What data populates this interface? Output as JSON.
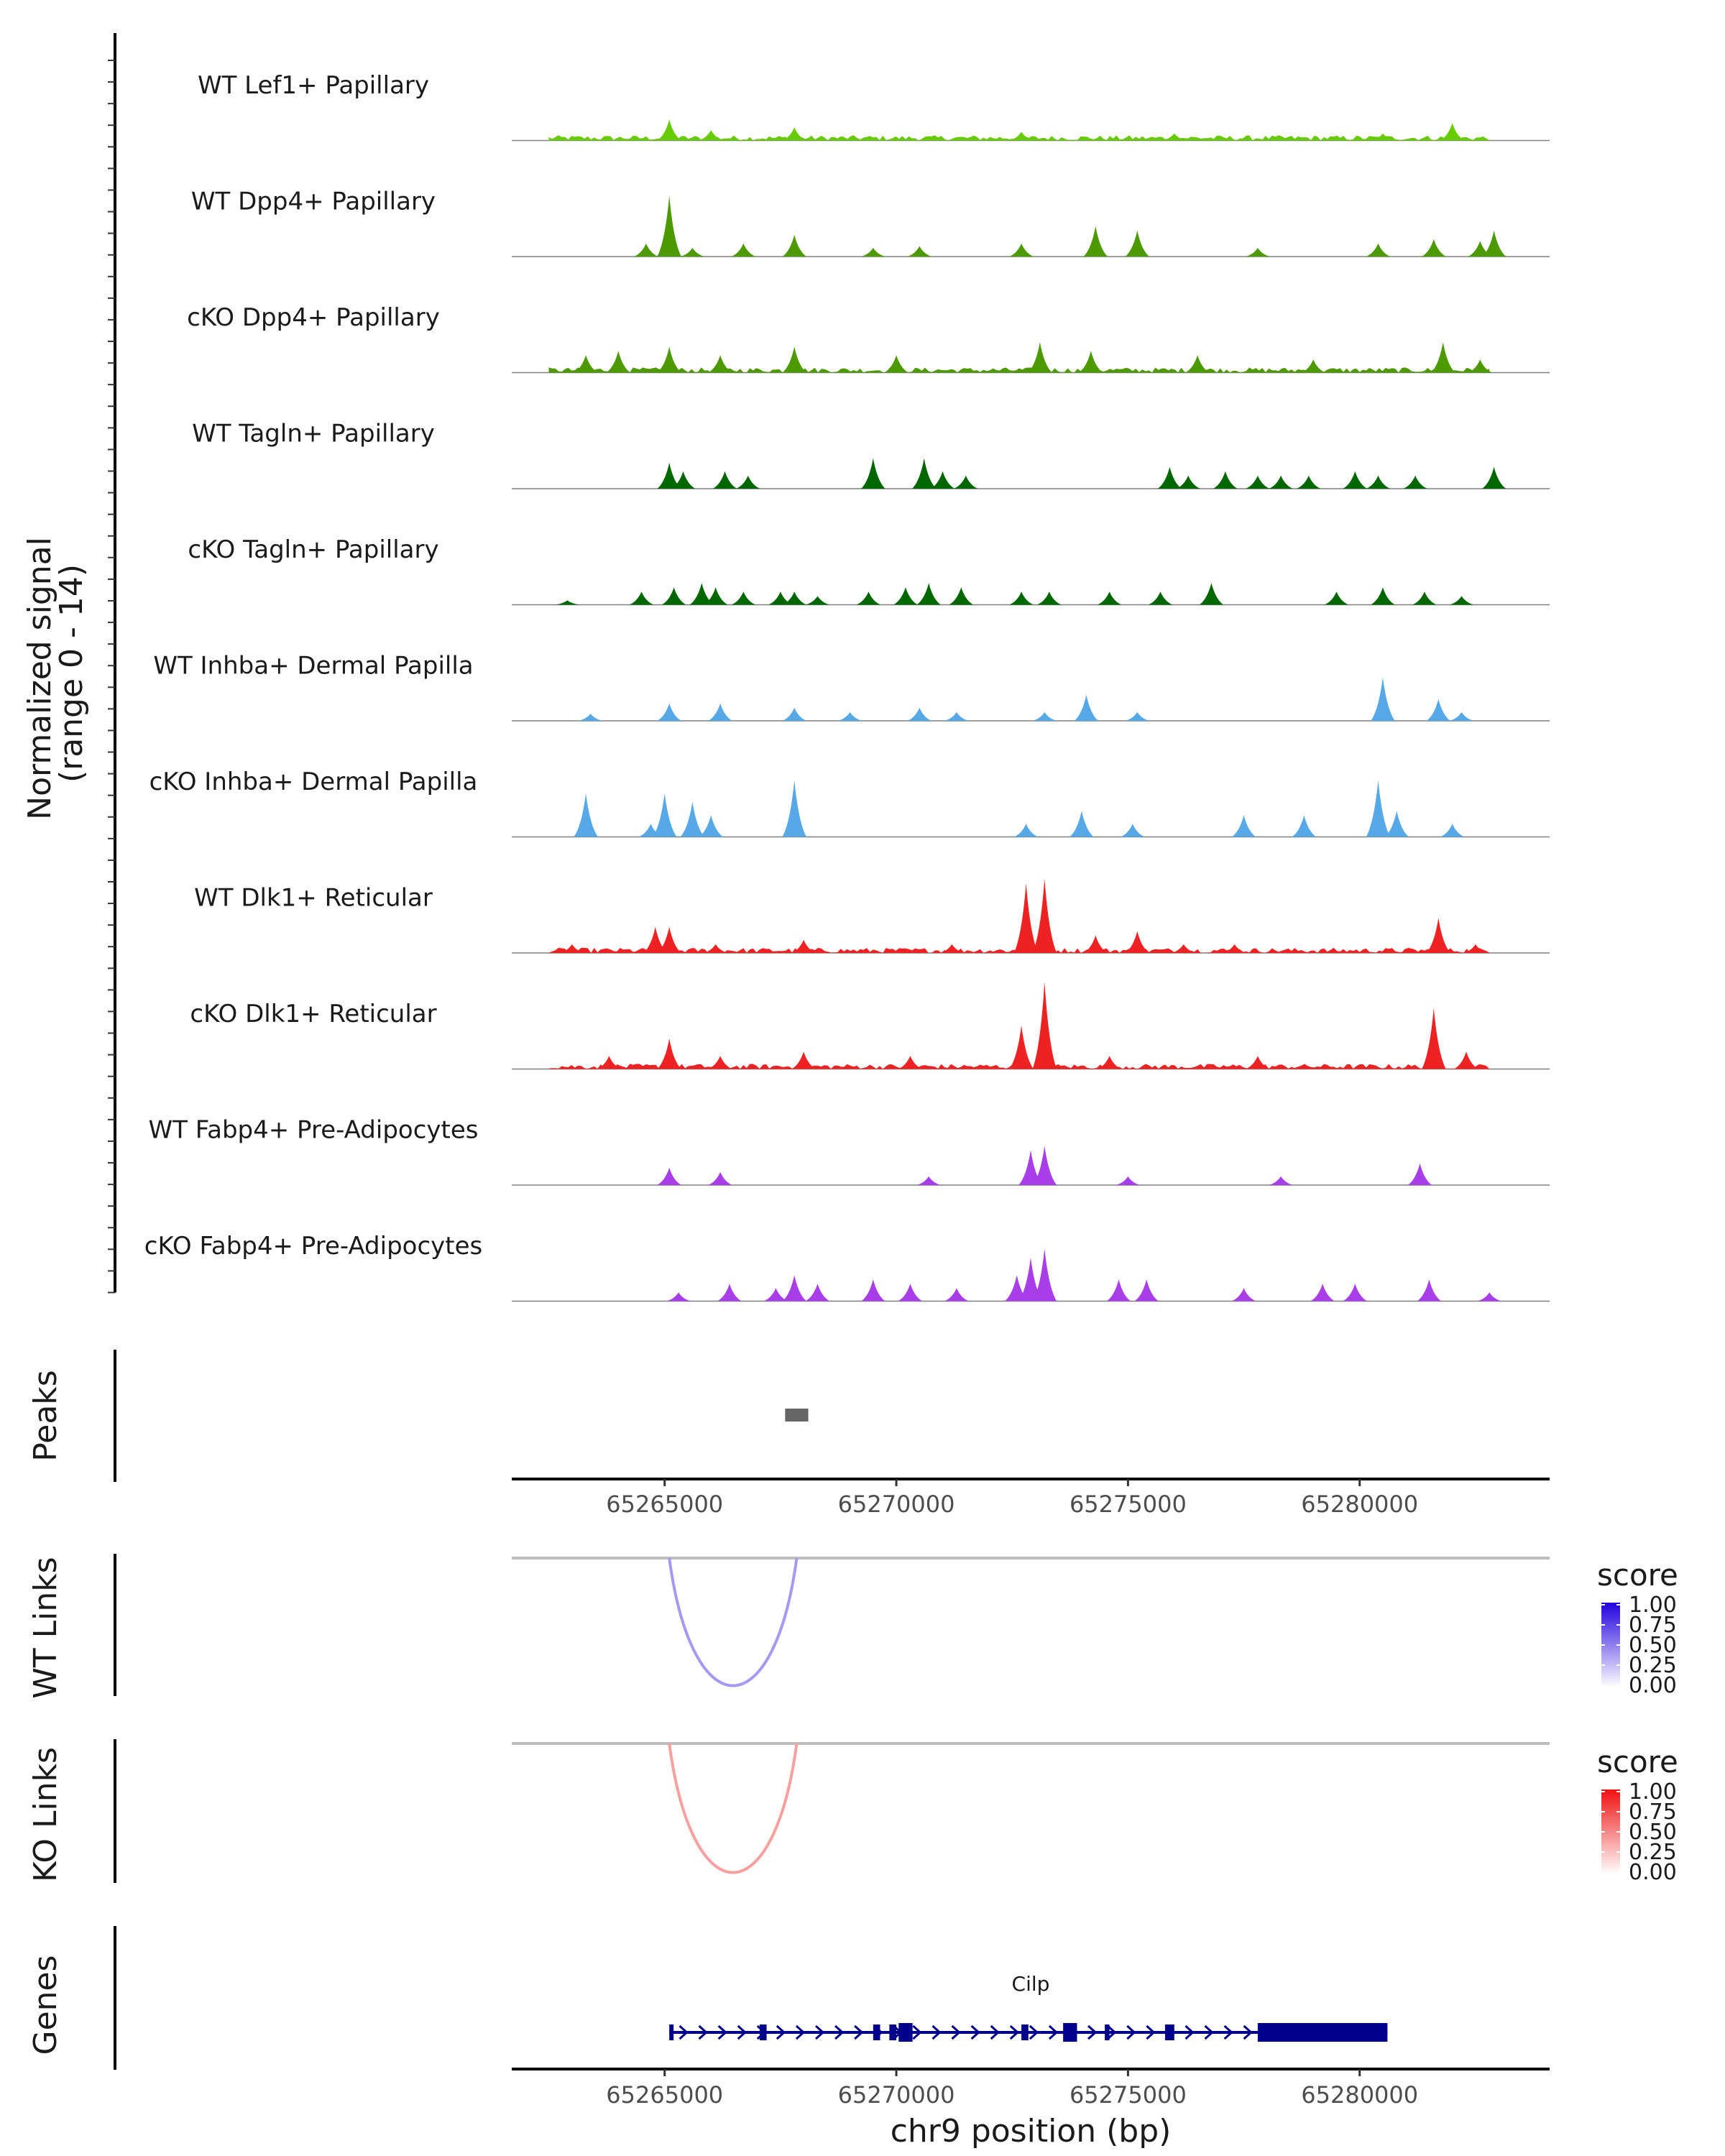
{
  "chart_data": {
    "type": "area",
    "region": "chr9:65262000-65283000",
    "x_range": [
      65261700,
      65284100
    ],
    "coverage": {
      "ylabel_line1": "Normalized signal",
      "ylabel_line2": "(range 0 - 14)",
      "y_range": [
        0,
        14
      ],
      "tracks": [
        {
          "name": "WT Lef1+ Papillary",
          "color": "#66cc00",
          "dense": true,
          "peaks": [
            {
              "x": 65265100,
              "y": 2.4
            },
            {
              "x": 65266000,
              "y": 1.2
            },
            {
              "x": 65267800,
              "y": 1.5
            },
            {
              "x": 65272700,
              "y": 1.0
            },
            {
              "x": 65276000,
              "y": 0.8
            },
            {
              "x": 65280500,
              "y": 0.8
            },
            {
              "x": 65282000,
              "y": 2.0
            }
          ]
        },
        {
          "name": "WT Dpp4+ Papillary",
          "color": "#4c9900",
          "dense": false,
          "peaks": [
            {
              "x": 65264600,
              "y": 1.5
            },
            {
              "x": 65265100,
              "y": 7.0
            },
            {
              "x": 65265600,
              "y": 1.0
            },
            {
              "x": 65266700,
              "y": 1.5
            },
            {
              "x": 65267800,
              "y": 2.5
            },
            {
              "x": 65269500,
              "y": 1.0
            },
            {
              "x": 65270500,
              "y": 1.2
            },
            {
              "x": 65272700,
              "y": 1.5
            },
            {
              "x": 65274300,
              "y": 3.5
            },
            {
              "x": 65275200,
              "y": 3.0
            },
            {
              "x": 65277800,
              "y": 1.0
            },
            {
              "x": 65280400,
              "y": 1.5
            },
            {
              "x": 65281600,
              "y": 2.0
            },
            {
              "x": 65282600,
              "y": 1.8
            },
            {
              "x": 65282900,
              "y": 3.0
            }
          ]
        },
        {
          "name": "cKO Dpp4+ Papillary",
          "color": "#4c9900",
          "dense": true,
          "peaks": [
            {
              "x": 65263300,
              "y": 2.0
            },
            {
              "x": 65264000,
              "y": 2.5
            },
            {
              "x": 65265100,
              "y": 3.0
            },
            {
              "x": 65266200,
              "y": 2.0
            },
            {
              "x": 65267800,
              "y": 3.0
            },
            {
              "x": 65270000,
              "y": 2.0
            },
            {
              "x": 65273100,
              "y": 3.5
            },
            {
              "x": 65274200,
              "y": 2.5
            },
            {
              "x": 65276500,
              "y": 2.0
            },
            {
              "x": 65279000,
              "y": 1.5
            },
            {
              "x": 65281800,
              "y": 3.5
            },
            {
              "x": 65282600,
              "y": 1.5
            }
          ]
        },
        {
          "name": "WT Tagln+ Papillary",
          "color": "#006600",
          "dense": false,
          "peaks": [
            {
              "x": 65265100,
              "y": 3.0
            },
            {
              "x": 65265400,
              "y": 2.0
            },
            {
              "x": 65266300,
              "y": 2.0
            },
            {
              "x": 65266800,
              "y": 1.5
            },
            {
              "x": 65269500,
              "y": 3.5
            },
            {
              "x": 65270600,
              "y": 3.5
            },
            {
              "x": 65271000,
              "y": 2.0
            },
            {
              "x": 65271500,
              "y": 1.5
            },
            {
              "x": 65275900,
              "y": 2.5
            },
            {
              "x": 65276300,
              "y": 1.5
            },
            {
              "x": 65277100,
              "y": 2.0
            },
            {
              "x": 65277800,
              "y": 1.5
            },
            {
              "x": 65278300,
              "y": 1.5
            },
            {
              "x": 65278900,
              "y": 1.5
            },
            {
              "x": 65279900,
              "y": 2.0
            },
            {
              "x": 65280400,
              "y": 1.5
            },
            {
              "x": 65281200,
              "y": 1.5
            },
            {
              "x": 65282900,
              "y": 2.5
            }
          ]
        },
        {
          "name": "cKO Tagln+ Papillary",
          "color": "#006600",
          "dense": false,
          "peaks": [
            {
              "x": 65262900,
              "y": 0.5
            },
            {
              "x": 65264500,
              "y": 1.5
            },
            {
              "x": 65265200,
              "y": 2.0
            },
            {
              "x": 65265800,
              "y": 2.5
            },
            {
              "x": 65266100,
              "y": 2.0
            },
            {
              "x": 65266700,
              "y": 1.5
            },
            {
              "x": 65267500,
              "y": 1.5
            },
            {
              "x": 65267800,
              "y": 1.5
            },
            {
              "x": 65268300,
              "y": 1.0
            },
            {
              "x": 65269400,
              "y": 1.5
            },
            {
              "x": 65270200,
              "y": 2.0
            },
            {
              "x": 65270700,
              "y": 2.5
            },
            {
              "x": 65271400,
              "y": 2.0
            },
            {
              "x": 65272700,
              "y": 1.5
            },
            {
              "x": 65273300,
              "y": 1.5
            },
            {
              "x": 65274600,
              "y": 1.5
            },
            {
              "x": 65275700,
              "y": 1.5
            },
            {
              "x": 65276800,
              "y": 2.5
            },
            {
              "x": 65279500,
              "y": 1.5
            },
            {
              "x": 65280500,
              "y": 2.0
            },
            {
              "x": 65281400,
              "y": 1.5
            },
            {
              "x": 65282200,
              "y": 1.0
            }
          ]
        },
        {
          "name": "WT Inhba+ Dermal Papilla",
          "color": "#56a8e6",
          "dense": false,
          "peaks": [
            {
              "x": 65263400,
              "y": 0.8
            },
            {
              "x": 65265100,
              "y": 2.0
            },
            {
              "x": 65266200,
              "y": 2.0
            },
            {
              "x": 65267800,
              "y": 1.5
            },
            {
              "x": 65269000,
              "y": 1.0
            },
            {
              "x": 65270500,
              "y": 1.5
            },
            {
              "x": 65271300,
              "y": 1.0
            },
            {
              "x": 65273200,
              "y": 1.0
            },
            {
              "x": 65274100,
              "y": 3.0
            },
            {
              "x": 65275200,
              "y": 1.0
            },
            {
              "x": 65280500,
              "y": 5.0
            },
            {
              "x": 65281700,
              "y": 2.5
            },
            {
              "x": 65282200,
              "y": 1.0
            }
          ]
        },
        {
          "name": "cKO Inhba+ Dermal Papilla",
          "color": "#56a8e6",
          "dense": false,
          "peaks": [
            {
              "x": 65263300,
              "y": 5.0
            },
            {
              "x": 65264700,
              "y": 1.5
            },
            {
              "x": 65265000,
              "y": 5.0
            },
            {
              "x": 65265600,
              "y": 4.0
            },
            {
              "x": 65266000,
              "y": 2.5
            },
            {
              "x": 65267800,
              "y": 6.5
            },
            {
              "x": 65272800,
              "y": 1.5
            },
            {
              "x": 65274000,
              "y": 3.0
            },
            {
              "x": 65275100,
              "y": 1.5
            },
            {
              "x": 65277500,
              "y": 2.5
            },
            {
              "x": 65278800,
              "y": 2.5
            },
            {
              "x": 65280400,
              "y": 6.5
            },
            {
              "x": 65280800,
              "y": 3.0
            },
            {
              "x": 65282000,
              "y": 1.5
            }
          ]
        },
        {
          "name": "WT Dlk1+ Reticular",
          "color": "#ee2222",
          "dense": true,
          "peaks": [
            {
              "x": 65263000,
              "y": 1.0
            },
            {
              "x": 65264800,
              "y": 3.0
            },
            {
              "x": 65265100,
              "y": 3.0
            },
            {
              "x": 65266100,
              "y": 1.0
            },
            {
              "x": 65268000,
              "y": 1.5
            },
            {
              "x": 65271200,
              "y": 1.0
            },
            {
              "x": 65272800,
              "y": 8.0
            },
            {
              "x": 65273200,
              "y": 8.5
            },
            {
              "x": 65274300,
              "y": 2.0
            },
            {
              "x": 65275200,
              "y": 2.5
            },
            {
              "x": 65276200,
              "y": 1.0
            },
            {
              "x": 65277300,
              "y": 1.0
            },
            {
              "x": 65281700,
              "y": 4.0
            },
            {
              "x": 65282500,
              "y": 1.0
            }
          ]
        },
        {
          "name": "cKO Dlk1+ Reticular",
          "color": "#ee2222",
          "dense": true,
          "peaks": [
            {
              "x": 65263800,
              "y": 1.5
            },
            {
              "x": 65265100,
              "y": 3.5
            },
            {
              "x": 65266200,
              "y": 1.5
            },
            {
              "x": 65268000,
              "y": 2.0
            },
            {
              "x": 65270300,
              "y": 1.5
            },
            {
              "x": 65272700,
              "y": 5.0
            },
            {
              "x": 65273200,
              "y": 10.0
            },
            {
              "x": 65274600,
              "y": 1.5
            },
            {
              "x": 65277800,
              "y": 1.5
            },
            {
              "x": 65281600,
              "y": 7.0
            },
            {
              "x": 65282300,
              "y": 2.0
            }
          ]
        },
        {
          "name": "WT Fabp4+ Pre-Adipocytes",
          "color": "#a83ee8",
          "dense": false,
          "peaks": [
            {
              "x": 65265100,
              "y": 2.0
            },
            {
              "x": 65266200,
              "y": 1.5
            },
            {
              "x": 65270700,
              "y": 1.0
            },
            {
              "x": 65272900,
              "y": 4.0
            },
            {
              "x": 65273200,
              "y": 4.5
            },
            {
              "x": 65275000,
              "y": 1.0
            },
            {
              "x": 65278300,
              "y": 1.0
            },
            {
              "x": 65281300,
              "y": 2.5
            }
          ]
        },
        {
          "name": "cKO Fabp4+ Pre-Adipocytes",
          "color": "#a83ee8",
          "dense": false,
          "peaks": [
            {
              "x": 65265300,
              "y": 1.0
            },
            {
              "x": 65266400,
              "y": 2.0
            },
            {
              "x": 65267400,
              "y": 1.5
            },
            {
              "x": 65267800,
              "y": 3.0
            },
            {
              "x": 65268300,
              "y": 2.0
            },
            {
              "x": 65269500,
              "y": 2.5
            },
            {
              "x": 65270300,
              "y": 2.0
            },
            {
              "x": 65271300,
              "y": 1.5
            },
            {
              "x": 65272600,
              "y": 3.0
            },
            {
              "x": 65272900,
              "y": 5.0
            },
            {
              "x": 65273200,
              "y": 6.0
            },
            {
              "x": 65274800,
              "y": 2.5
            },
            {
              "x": 65275400,
              "y": 2.5
            },
            {
              "x": 65277500,
              "y": 1.5
            },
            {
              "x": 65279200,
              "y": 2.0
            },
            {
              "x": 65279900,
              "y": 2.0
            },
            {
              "x": 65281500,
              "y": 2.5
            },
            {
              "x": 65282800,
              "y": 1.0
            }
          ]
        }
      ]
    },
    "peaks_track": {
      "label": "Peaks",
      "ranges": [
        [
          65267600,
          65268100
        ]
      ],
      "color": "#666666"
    },
    "x_axis": {
      "ticks": [
        65265000,
        65270000,
        65275000,
        65280000
      ],
      "tick_labels": [
        "65265000",
        "65270000",
        "65275000",
        "65280000"
      ]
    },
    "links": [
      {
        "label": "WT Links",
        "from": 65265100,
        "to": 65267850,
        "score": 0.4,
        "low_color": "#ffffff",
        "high_color": "#2200dd",
        "legend_title": "score",
        "legend_ticks": [
          "1.00",
          "0.75",
          "0.50",
          "0.25",
          "0.00"
        ]
      },
      {
        "label": "KO Links",
        "from": 65265100,
        "to": 65267850,
        "score": 0.4,
        "low_color": "#ffffff",
        "high_color": "#ee1111",
        "legend_title": "score",
        "legend_ticks": [
          "1.00",
          "0.75",
          "0.50",
          "0.25",
          "0.00"
        ]
      }
    ],
    "genes": {
      "label": "Genes",
      "name": "Cilp",
      "color": "#00008b",
      "range": [
        65265100,
        65280600
      ],
      "exons": [
        [
          65265100,
          65265180
        ],
        [
          65267050,
          65267200
        ],
        [
          65269500,
          65269650
        ],
        [
          65269850,
          65270000
        ],
        [
          65270050,
          65270350
        ],
        [
          65272700,
          65272850
        ],
        [
          65273600,
          65273900
        ],
        [
          65274500,
          65274600
        ],
        [
          65275800,
          65276000
        ],
        [
          65277800,
          65280600
        ]
      ]
    },
    "xlabel": "chr9 position (bp)"
  }
}
